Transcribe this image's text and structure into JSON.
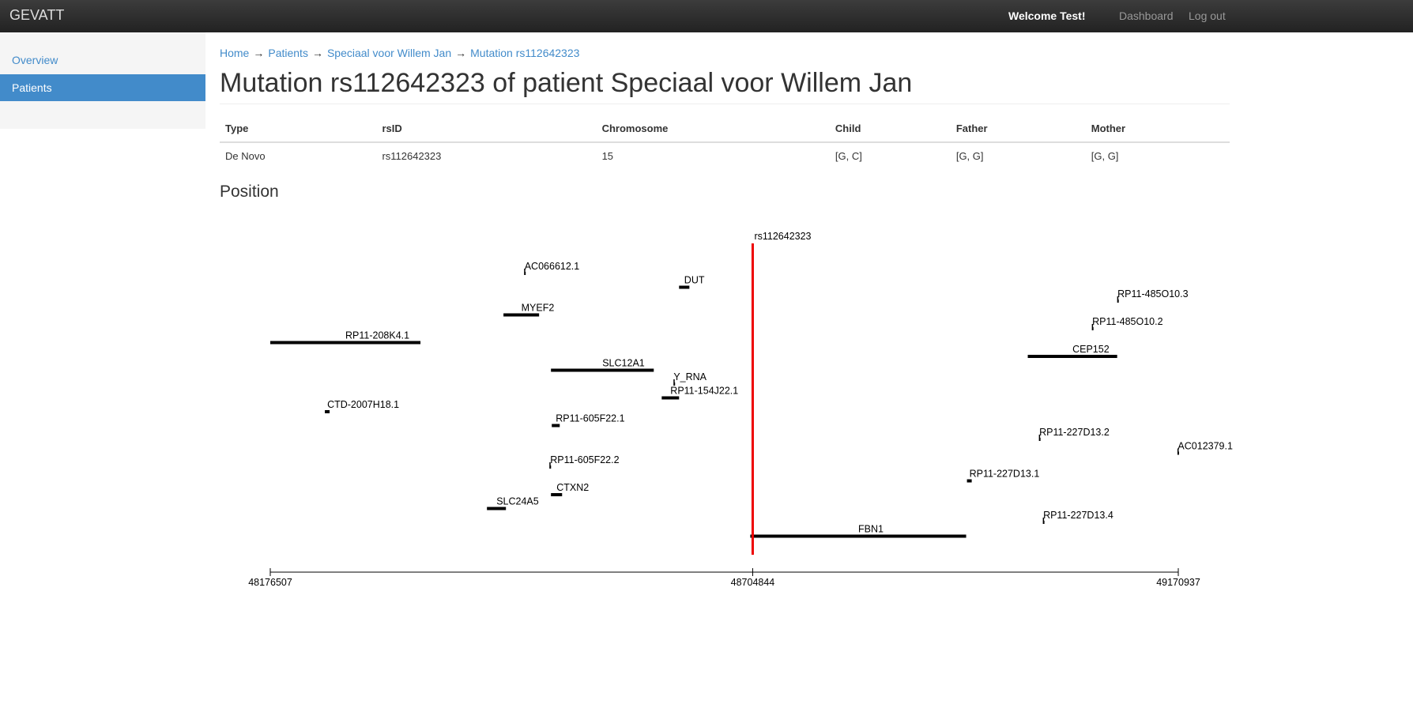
{
  "navbar": {
    "brand": "GEVATT",
    "welcome": "Welcome Test!",
    "links": [
      "Dashboard",
      "Log out"
    ]
  },
  "sidebar": {
    "items": [
      "Overview",
      "Patients"
    ],
    "active": 1
  },
  "breadcrumb": {
    "items": [
      "Home",
      "Patients",
      "Speciaal voor Willem Jan",
      "Mutation rs112642323"
    ],
    "separator": "→"
  },
  "title": "Mutation rs112642323 of patient Speciaal voor Willem Jan",
  "table": {
    "headers": [
      "Type",
      "rsID",
      "Chromosome",
      "Child",
      "Father",
      "Mother"
    ],
    "rows": [
      [
        "De Novo",
        "rs112642323",
        "15",
        "[G, C]",
        "[G, G]",
        "[G, G]"
      ]
    ]
  },
  "position": {
    "heading": "Position",
    "mutation": {
      "name": "rs112642323",
      "position": 48704844
    },
    "xlim": [
      48176507,
      49170937
    ],
    "ticks": [
      48176507,
      48704844,
      49170937
    ],
    "genes": [
      {
        "name": "AC066612.1",
        "start": 48454500,
        "end": 48455400
      },
      {
        "name": "DUT",
        "start": 48624200,
        "end": 48635500
      },
      {
        "name": "RP11-485O10.3",
        "start": 49104000,
        "end": 49104800
      },
      {
        "name": "MYEF2",
        "start": 48431900,
        "end": 48470900
      },
      {
        "name": "RP11-485O10.2",
        "start": 49076300,
        "end": 49077100
      },
      {
        "name": "RP11-208K4.1",
        "start": 48176507,
        "end": 48341000
      },
      {
        "name": "CEP152",
        "start": 49006100,
        "end": 49104000
      },
      {
        "name": "SLC12A1",
        "start": 48483900,
        "end": 48596500
      },
      {
        "name": "Y_RNA",
        "start": 48618100,
        "end": 48618300
      },
      {
        "name": "RP11-154J22.1",
        "start": 48605200,
        "end": 48624200
      },
      {
        "name": "CTD-2007H18.1",
        "start": 48236300,
        "end": 48241500
      },
      {
        "name": "RP11-605F22.1",
        "start": 48484800,
        "end": 48493500
      },
      {
        "name": "RP11-227D13.2",
        "start": 49018300,
        "end": 49019100
      },
      {
        "name": "AC012379.1",
        "start": 49170000,
        "end": 49170900
      },
      {
        "name": "RP11-605F22.2",
        "start": 48482200,
        "end": 48484000
      },
      {
        "name": "RP11-227D13.1",
        "start": 48939500,
        "end": 48944700
      },
      {
        "name": "CTXN2",
        "start": 48483900,
        "end": 48496100
      },
      {
        "name": "SLC24A5",
        "start": 48413800,
        "end": 48434600
      },
      {
        "name": "RP11-227D13.4",
        "start": 49022600,
        "end": 49023400
      },
      {
        "name": "FBN1",
        "start": 48702200,
        "end": 48938600
      }
    ]
  }
}
